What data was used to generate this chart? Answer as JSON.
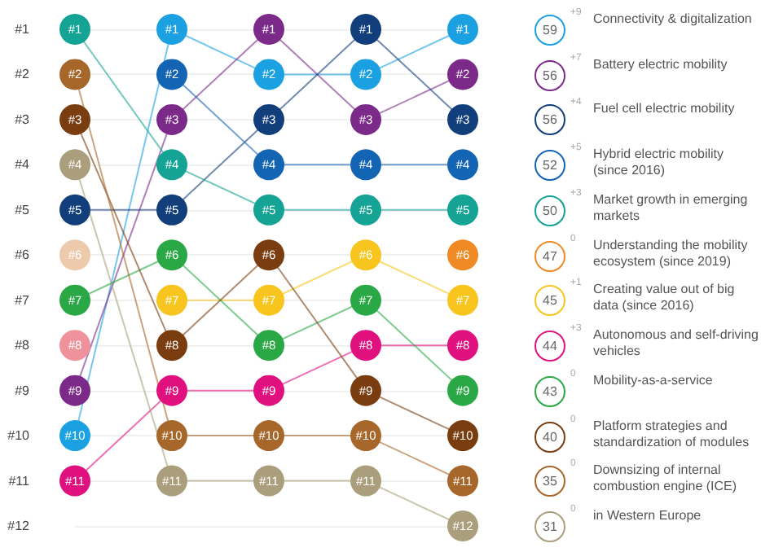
{
  "chart_data": {
    "type": "line",
    "categories": [
      null,
      null,
      null,
      null,
      null
    ],
    "series": [
      {
        "name": "Connectivity & digitalization",
        "color": "#1ba1e2",
        "values": [
          10,
          1,
          2,
          2,
          1
        ],
        "value_labels": [
          "#10",
          "#1",
          "#2",
          "#2",
          "#1"
        ]
      },
      {
        "name": "Battery electric mobility",
        "color": "#7b2a8a",
        "values": [
          9,
          3,
          1,
          3,
          2
        ],
        "value_labels": [
          "#9",
          "#3",
          "#1",
          "#3",
          "#2"
        ]
      },
      {
        "name": "Fuel cell electric mobility",
        "color": "#123f7c",
        "values": [
          5,
          5,
          3,
          1,
          3
        ],
        "value_labels": [
          "#5",
          "#5",
          "#3",
          "#1",
          "#3"
        ]
      },
      {
        "name": "Hybrid electric mobility (since 2016)",
        "color": "#1464b4",
        "values": [
          null,
          2,
          4,
          4,
          4
        ],
        "value_labels": [
          null,
          "#2",
          "#4",
          "#4",
          "#4"
        ]
      },
      {
        "name": "Market growth in emerging markets",
        "color": "#14a394",
        "values": [
          1,
          4,
          5,
          5,
          5
        ],
        "value_labels": [
          "#1",
          "#4",
          "#5",
          "#5",
          "#5"
        ]
      },
      {
        "name": "Understanding the mobility ecosystem (since 2019)",
        "color": "#f08a24",
        "values": [
          null,
          null,
          null,
          null,
          6
        ],
        "value_labels": [
          null,
          null,
          null,
          null,
          "#6"
        ]
      },
      {
        "name": "Creating value out of big data (since 2016)",
        "color": "#f7c51e",
        "values": [
          null,
          7,
          7,
          6,
          7
        ],
        "value_labels": [
          null,
          "#7",
          "#7",
          "#6",
          "#7"
        ]
      },
      {
        "name": "Autonomous and self-driving vehicles",
        "color": "#e0117f",
        "values": [
          11,
          9,
          9,
          8,
          8
        ],
        "value_labels": [
          "#11",
          "#9",
          "#9",
          "#8",
          "#8"
        ]
      },
      {
        "name": "Mobility-as-a-service",
        "color": "#2aa845",
        "values": [
          7,
          6,
          8,
          7,
          9
        ],
        "value_labels": [
          "#7",
          "#6",
          "#8",
          "#7",
          "#9"
        ]
      },
      {
        "name": "Platform strategies and standardization of modules",
        "color": "#7a3d10",
        "values": [
          3,
          8,
          6,
          9,
          10
        ],
        "value_labels": [
          "#3",
          "#8",
          "#6",
          "#9",
          "#10"
        ]
      },
      {
        "name": "Downsizing of internal combustion engine (ICE)",
        "color": "#a8672a",
        "values": [
          2,
          10,
          10,
          10,
          11
        ],
        "value_labels": [
          "#2",
          "#10",
          "#10",
          "#10",
          "#11"
        ]
      },
      {
        "name": "in Western Europe",
        "color": "#aa9e7c",
        "values": [
          4,
          11,
          11,
          11,
          12
        ],
        "value_labels": [
          "#4",
          "#11",
          "#11",
          "#11",
          "#12"
        ]
      },
      {
        "color": "#eecaac",
        "values": [
          6,
          null,
          null,
          null,
          null
        ],
        "value_labels": [
          "#6",
          null,
          null,
          null,
          null
        ]
      },
      {
        "color": "#f0929c",
        "values": [
          8,
          null,
          null,
          null,
          null
        ],
        "value_labels": [
          "#8",
          null,
          null,
          null,
          null
        ]
      }
    ],
    "ylim": [
      12,
      1
    ],
    "yticks": [
      {
        "value": 1,
        "label": "#1"
      },
      {
        "value": 2,
        "label": "#2"
      },
      {
        "value": 3,
        "label": "#3"
      },
      {
        "value": 4,
        "label": "#4"
      },
      {
        "value": 5,
        "label": "#5"
      },
      {
        "value": 6,
        "label": "#6"
      },
      {
        "value": 7,
        "label": "#7"
      },
      {
        "value": 8,
        "label": "#8"
      },
      {
        "value": 9,
        "label": "#9"
      },
      {
        "value": 10,
        "label": "#10"
      },
      {
        "value": 11,
        "label": "#11"
      },
      {
        "value": 12,
        "label": "#12"
      }
    ],
    "grid": "y",
    "marker": "circle",
    "line_style": "solid",
    "legend": "right",
    "tick_labels": "y",
    "annotations": [
      "59",
      "+9",
      "56",
      "+7",
      "56",
      "+4",
      "52",
      "+5",
      "50",
      "+3",
      "47",
      "0",
      "45",
      "+1",
      "44",
      "+3",
      "43",
      "0",
      "40",
      "0",
      "35",
      "0",
      "31",
      "0"
    ]
  }
}
